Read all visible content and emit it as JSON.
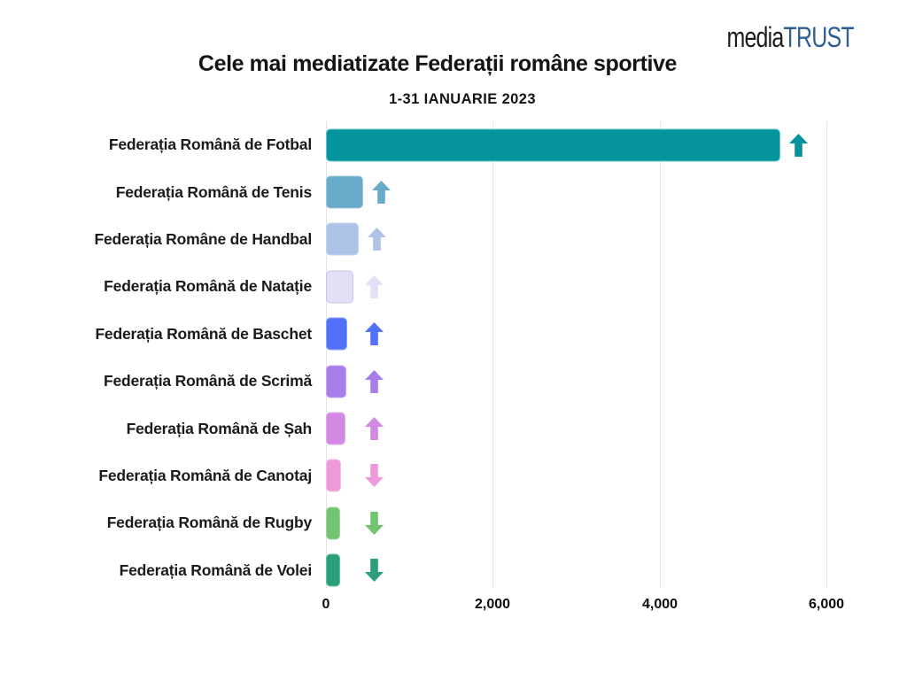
{
  "logo": {
    "media": "media",
    "trust": "TRUST",
    "media_color": "#1c1c1c",
    "trust_color": "#2e5f94"
  },
  "title": "Cele mai mediatizate Federații române sportive",
  "subtitle": "1-31 IANUARIE 2023",
  "chart_data": {
    "type": "bar",
    "orientation": "horizontal",
    "title": "Cele mai mediatizate Federații române sportive",
    "subtitle": "1-31 IANUARIE 2023",
    "grid": true,
    "xlim": [
      0,
      6000
    ],
    "x_axis": {
      "ticks": [
        "0",
        "2,000",
        "4,000",
        "6,000"
      ],
      "tick_values": [
        0,
        2000,
        4000,
        6000
      ]
    },
    "items": [
      {
        "label": "Federația Română de Fotbal",
        "value": 5450,
        "trend": "up",
        "color": "#05949c",
        "border": "#5fc3c8"
      },
      {
        "label": "Federația Română de Tenis",
        "value": 450,
        "trend": "up",
        "color": "#68aac9",
        "border": "#9cc8de"
      },
      {
        "label": "Federația Române de Handbal",
        "value": 395,
        "trend": "up",
        "color": "#aec3e8",
        "border": "#c4d4ef"
      },
      {
        "label": "Federația Română de Natație",
        "value": 325,
        "trend": "up",
        "color": "#e3e0f6",
        "border": "#c8c4ef"
      },
      {
        "label": "Federația Română de Baschet",
        "value": 255,
        "trend": "up",
        "color": "#5270f8",
        "border": "#8ba0fa"
      },
      {
        "label": "Federația Română de Scrimă",
        "value": 245,
        "trend": "up",
        "color": "#a77ee8",
        "border": "#c4a8ef"
      },
      {
        "label": "Federația Română de Șah",
        "value": 235,
        "trend": "up",
        "color": "#d389e2",
        "border": "#e2aeea"
      },
      {
        "label": "Federația Română de Canotaj",
        "value": 180,
        "trend": "down",
        "color": "#ee9ad8",
        "border": "#f4bce4"
      },
      {
        "label": "Federația Română de Rugby",
        "value": 175,
        "trend": "down",
        "color": "#72c470",
        "border": "#9ed69c"
      },
      {
        "label": "Federația Română de Volei",
        "value": 165,
        "trend": "down",
        "color": "#2b9e7c",
        "border": "#5fbf9e"
      }
    ]
  }
}
